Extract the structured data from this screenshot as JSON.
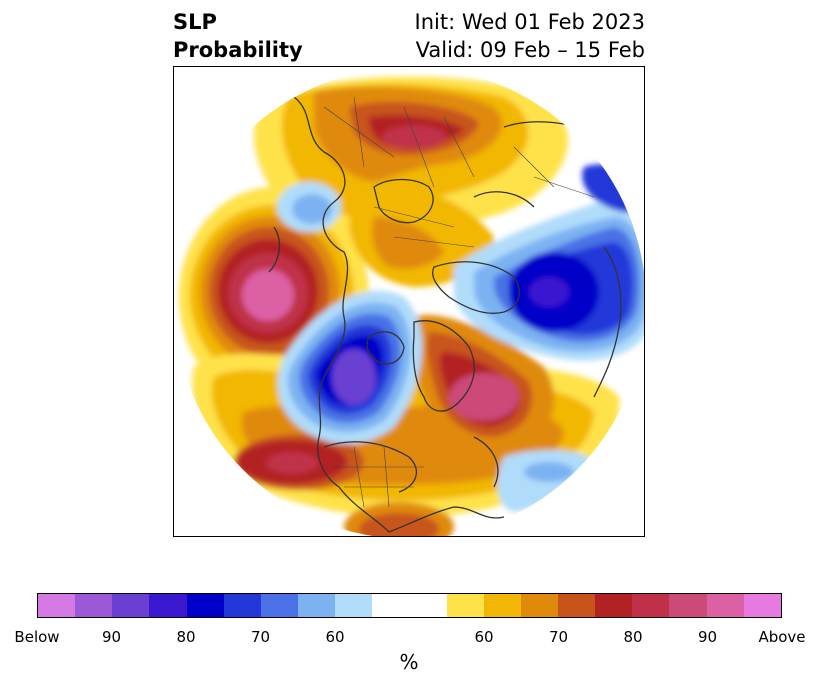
{
  "title": {
    "line1_left": "SLP",
    "line2_left": "Probability",
    "line1_right": "Init: Wed 01 Feb 2023",
    "line2_right": "Valid: 09 Feb – 15 Feb"
  },
  "colorbar": {
    "units": "%",
    "segments": [
      "#d478e4",
      "#9b59d8",
      "#6a3fd2",
      "#3a18d0",
      "#0000c8",
      "#2438d9",
      "#4a72e6",
      "#7cb2f2",
      "#b0dcfa",
      "#ffffff",
      "#ffffff",
      "#ffe24a",
      "#f2b705",
      "#e08a0c",
      "#c8541a",
      "#b22222",
      "#c03048",
      "#cc4a78",
      "#dc60a4",
      "#e67ae0"
    ],
    "tick_labels": [
      "Below",
      "90",
      "80",
      "70",
      "60",
      "60",
      "70",
      "80",
      "90",
      "Above"
    ]
  },
  "colors": {
    "below_strong": "#4a00d0",
    "below_mid": "#0000c8",
    "below_light": "#b0dcfa",
    "above_light": "#ffe24a",
    "above_mid": "#e08a0c",
    "above_strong": "#b22222",
    "above_extreme": "#cc4a78",
    "coastline": "#333333"
  }
}
